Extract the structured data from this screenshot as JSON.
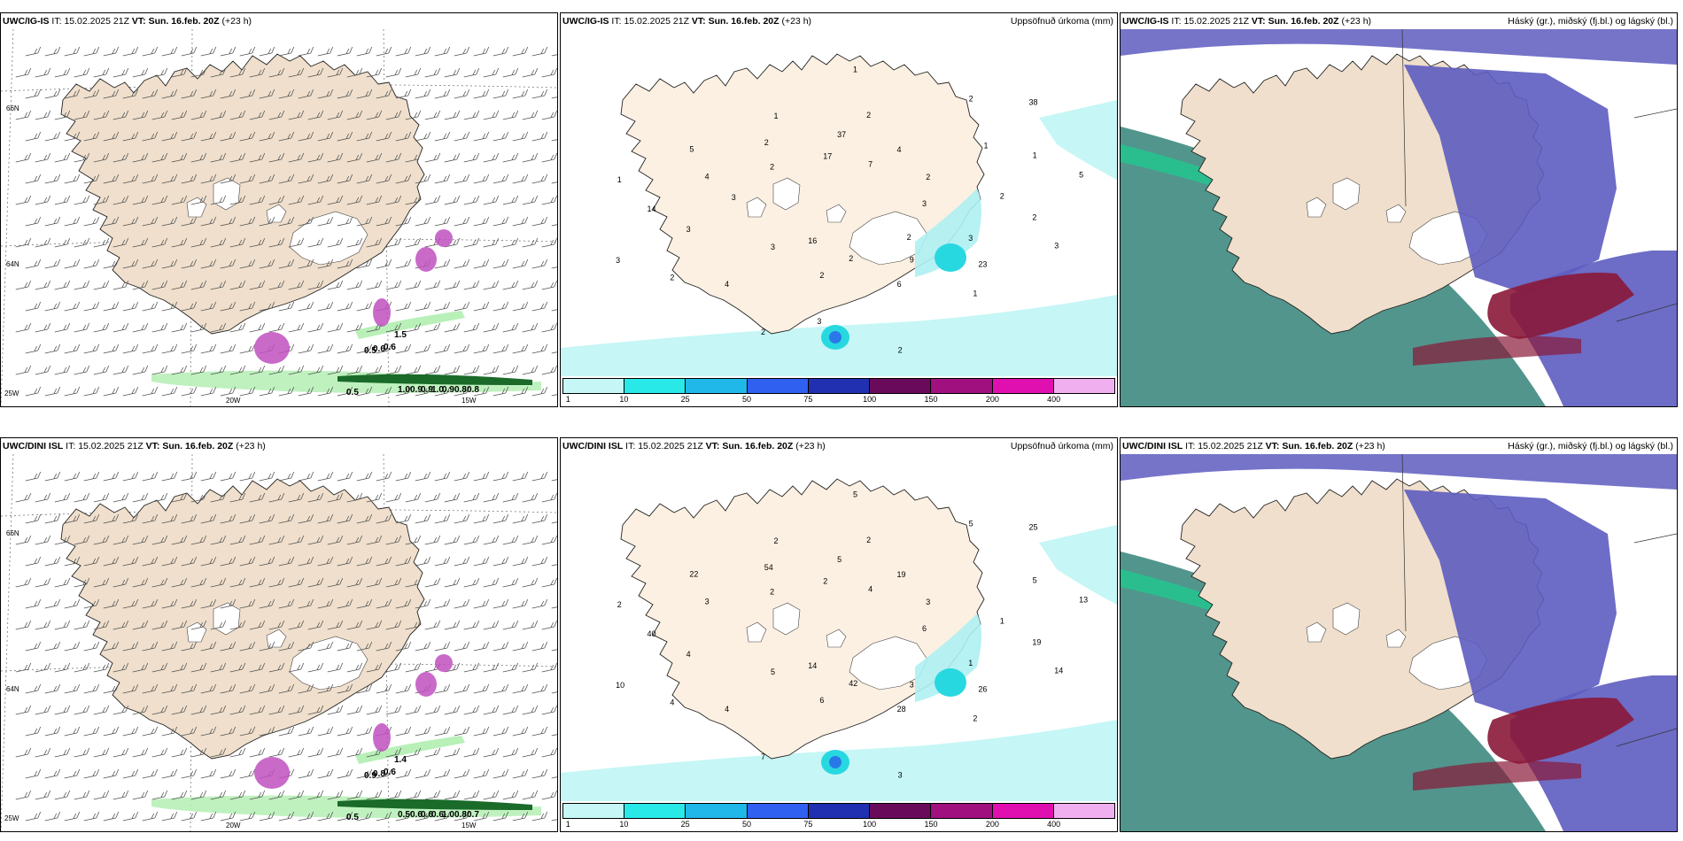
{
  "rows": [
    {
      "model": "UWC/IG-IS",
      "it_label": "IT:",
      "it_value": "15.02.2025 21Z",
      "vt_label": "VT:",
      "vt_value": "Sun. 16.feb. 20Z",
      "lead": "(+23 h)",
      "precip_title": "Uppsöfnuð úrkoma (mm)",
      "cloud_title": "Háský (gr.), miðský (fj.bl.) og lágský (bl.)",
      "wind_labels": [
        "0.5",
        "1.0",
        "0.9",
        "0.9",
        "1.0",
        "0.9",
        "0.8",
        "0.8",
        "0.5",
        "0.6",
        "0.6",
        "1.5"
      ],
      "precip_labels": [
        "3",
        "3",
        "2",
        "1",
        "1",
        "2",
        "2",
        "1",
        "3",
        "3",
        "4",
        "6",
        "5",
        "5",
        "16",
        "37",
        "23",
        "14",
        "38",
        "2",
        "2",
        "2",
        "2",
        "7",
        "9",
        "4",
        "1",
        "2",
        "17",
        "3",
        "3",
        "2",
        "2",
        "2",
        "2",
        "4",
        "1",
        "2",
        "3",
        "1",
        "3"
      ]
    },
    {
      "model": "UWC/DINI ISL",
      "it_label": "IT:",
      "it_value": "15.02.2025 21Z",
      "vt_label": "VT:",
      "vt_value": "Sun. 16.feb. 20Z",
      "lead": "(+23 h)",
      "precip_title": "Uppsöfnuð úrkoma (mm)",
      "cloud_title": "Háský (gr.), miðský (fj.bl.) og lágský (bl.)",
      "wind_labels": [
        "0.5",
        "0.5",
        "0.6",
        "0.6",
        "0.6",
        "1.0",
        "0.8",
        "0.7",
        "0.9",
        "0.8",
        "0.6",
        "1.4"
      ],
      "precip_labels": [
        "6",
        "5",
        "2",
        "2",
        "2",
        "3",
        "6",
        "2",
        "14",
        "10",
        "19",
        "28",
        "22",
        "13",
        "14",
        "5",
        "26",
        "40",
        "25",
        "42",
        "54",
        "19",
        "4",
        "4",
        "3",
        "3",
        "5",
        "7",
        "2",
        "1",
        "4",
        "5",
        "3",
        "2",
        "1",
        "4",
        "5"
      ]
    }
  ],
  "axis_labels": {
    "lat_top": "66N",
    "lat_mid": "64N",
    "lat_bottom": "25W",
    "lon_left": "20W",
    "lon_right": "15W"
  },
  "precip_scale": {
    "ticks": [
      "1",
      "10",
      "25",
      "50",
      "75",
      "100",
      "150",
      "200",
      "400"
    ],
    "colors": [
      "#c6f6f6",
      "#28e8e8",
      "#20b8e8",
      "#3060f0",
      "#2030b0",
      "#6a0a5a",
      "#a0107e",
      "#e010b0",
      "#f0b0f0"
    ]
  },
  "colors": {
    "land": "#efdfcc",
    "land_precip": "#fcf0e2",
    "snow": "#ffffff",
    "wind_green": "#b8f0b8",
    "wind_dark": "#1a6a2a",
    "magenta": "#c050c0",
    "precip_cyan": "#c6f6f6",
    "high_cloud": "#3f8a80",
    "mid_cloud": "#5d5cc0",
    "low_cloud": "#8a1838",
    "cloud_green": "#20c890"
  }
}
